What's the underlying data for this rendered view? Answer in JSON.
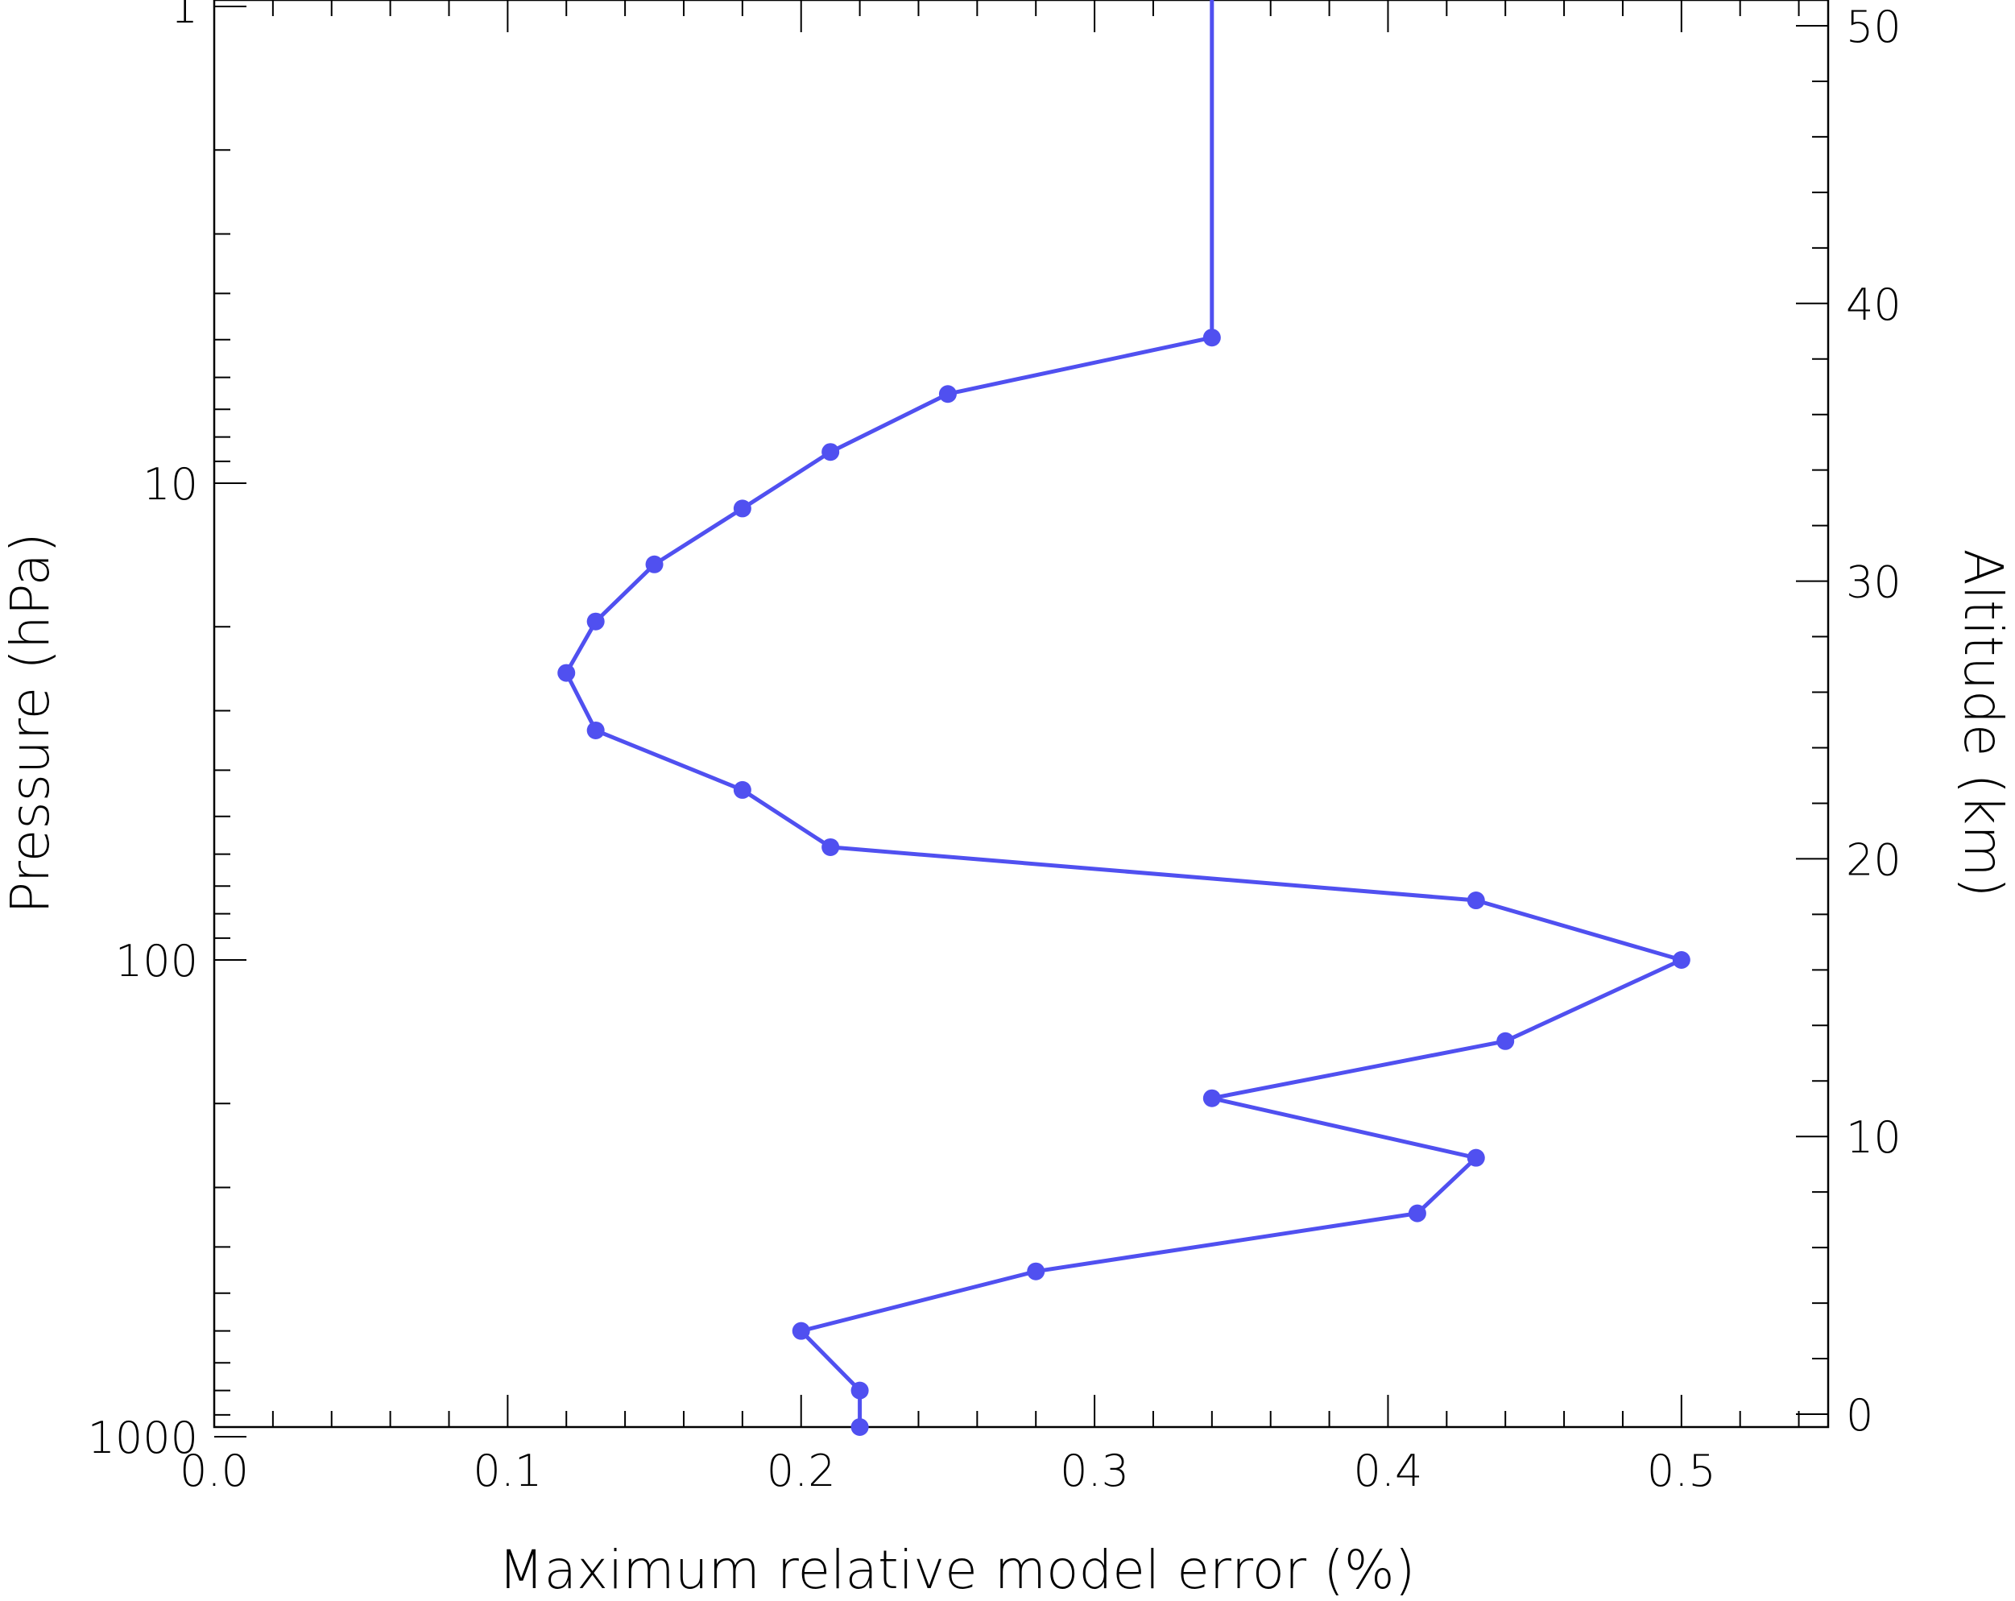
{
  "chart_data": {
    "type": "line",
    "xlabel": "Maximum relative model error (%)",
    "ylabel": "Pressure (hPa)",
    "y2label": "Altitude (km)",
    "xlim": [
      0.0,
      0.55
    ],
    "ylim": [
      1000,
      1
    ],
    "yscale": "log",
    "y2lim": [
      0,
      50
    ],
    "grid": false,
    "x_tick_labels": [
      "0.0",
      "0.1",
      "0.2",
      "0.3",
      "0.4",
      "0.5"
    ],
    "y_tick_labels": [
      "1",
      "10",
      "100",
      "1000"
    ],
    "y2_tick_labels": [
      "0",
      "10",
      "20",
      "30",
      "40",
      "50"
    ],
    "color": "#5050f0",
    "series": [
      {
        "x": [
          0.22,
          0.22,
          0.2,
          0.28,
          0.41,
          0.43,
          0.34,
          0.44,
          0.5,
          0.43,
          0.21,
          0.18,
          0.13,
          0.12,
          0.13,
          0.15,
          0.18,
          0.21,
          0.25,
          0.34
        ],
        "y": [
          1025,
          800,
          600,
          450,
          340,
          260,
          195,
          148,
          100,
          75,
          58,
          44,
          33,
          25,
          19.5,
          14.8,
          11.3,
          8.6,
          6.5,
          4.95
        ],
        "top_extension_x": 0.34
      }
    ]
  }
}
